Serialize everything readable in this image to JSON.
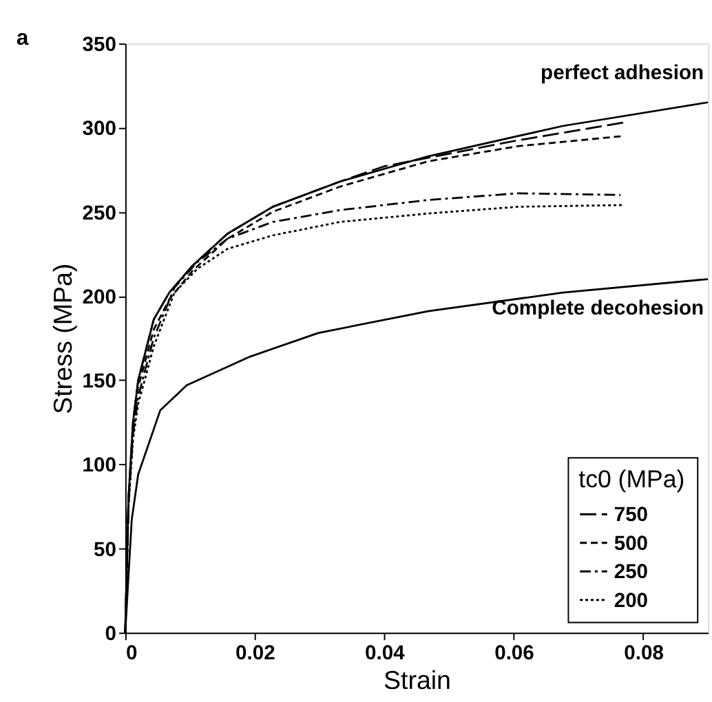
{
  "chart_data": {
    "type": "line",
    "xlabel": "Strain",
    "ylabel": "Stress (MPa)",
    "legend_title": "tc0 (MPa)",
    "legend": "bottom right",
    "grid": false,
    "marker": "none",
    "xlim": [
      0,
      0.09
    ],
    "xticks": [
      0,
      0.02,
      0.04,
      0.06,
      0.08
    ],
    "ylim": [
      0,
      350
    ],
    "yticks": [
      0,
      50,
      100,
      150,
      200,
      250,
      300,
      350
    ],
    "annotations": [
      "a",
      {
        "text": "perfect adhesion",
        "x": 0.09,
        "y": 315
      },
      {
        "text": "Complete decohesion",
        "x": 0.09,
        "y": 210
      }
    ],
    "series": [
      {
        "color": "#000000",
        "line_style": "solid",
        "x": [
          0,
          0.0005,
          0.0012,
          0.002,
          0.003,
          0.0044,
          0.0068,
          0.0104,
          0.0158,
          0.0228,
          0.0332,
          0.0468,
          0.0676,
          0.09
        ],
        "values": [
          0,
          80,
          125,
          150,
          165,
          186,
          202,
          218,
          237,
          253,
          268,
          283,
          301,
          315
        ]
      },
      {
        "color": "#000000",
        "line_style": "solid",
        "x": [
          0,
          0.001,
          0.002,
          0.0054,
          0.0095,
          0.0193,
          0.0298,
          0.0468,
          0.0676,
          0.09
        ],
        "values": [
          0,
          67,
          94,
          132,
          147,
          164,
          178,
          191,
          202,
          210
        ]
      },
      {
        "name": "750",
        "color": "#000000",
        "line_style": "longdash",
        "x": [
          0,
          0.0005,
          0.0012,
          0.002,
          0.003,
          0.0044,
          0.0068,
          0.0104,
          0.0158,
          0.0228,
          0.0332,
          0.04,
          0.06,
          0.0769
        ],
        "values": [
          0,
          80,
          125,
          150,
          165,
          186,
          202,
          218,
          237,
          253,
          268,
          277,
          292,
          303
        ]
      },
      {
        "name": "500",
        "color": "#000000",
        "line_style": "dashed",
        "x": [
          0,
          0.0005,
          0.0012,
          0.002,
          0.003,
          0.0044,
          0.0068,
          0.0104,
          0.0158,
          0.0228,
          0.0332,
          0.0468,
          0.0607,
          0.0769
        ],
        "values": [
          0,
          78,
          122,
          146,
          160,
          180,
          198,
          215,
          234,
          250,
          265,
          280,
          289,
          295
        ]
      },
      {
        "name": "250",
        "color": "#000000",
        "line_style": "dashdot",
        "x": [
          0,
          0.0005,
          0.0012,
          0.002,
          0.003,
          0.0044,
          0.0076,
          0.0111,
          0.0158,
          0.0228,
          0.0332,
          0.0468,
          0.0607,
          0.0765
        ],
        "values": [
          0,
          76,
          118,
          140,
          155,
          175,
          205,
          220,
          234,
          244,
          251,
          257,
          261,
          260
        ]
      },
      {
        "name": "200",
        "color": "#000000",
        "line_style": "dotted",
        "x": [
          0,
          0.0005,
          0.0012,
          0.002,
          0.003,
          0.0044,
          0.0076,
          0.0111,
          0.0158,
          0.0228,
          0.0332,
          0.0468,
          0.0607,
          0.0769
        ],
        "values": [
          0,
          74,
          115,
          136,
          150,
          170,
          202,
          216,
          228,
          236,
          244,
          249,
          253,
          254
        ]
      }
    ]
  }
}
